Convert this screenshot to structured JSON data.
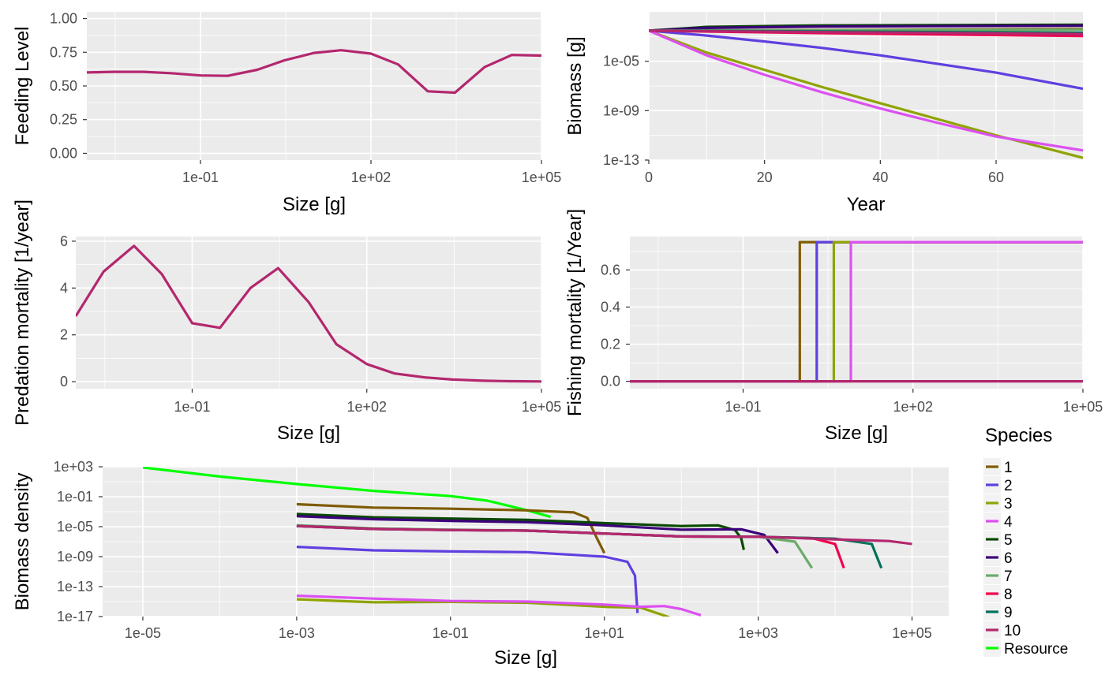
{
  "species_colors": {
    "1": "#7F5B00",
    "2": "#5F3FE0",
    "3": "#8FA300",
    "4": "#DC50F0",
    "5": "#0A4A00",
    "6": "#3B007A",
    "7": "#6AAA6A",
    "8": "#F0004C",
    "9": "#00715A",
    "10": "#B3276E",
    "Resource": "#00FF00"
  },
  "legend": {
    "title": "Species",
    "entries": [
      "1",
      "2",
      "3",
      "4",
      "5",
      "6",
      "7",
      "8",
      "9",
      "10",
      "Resource"
    ]
  },
  "chart_data": [
    {
      "type": "line",
      "xlabel": "Size [g]",
      "ylabel": "Feeding Level",
      "x_scale": "log10",
      "xlim": [
        0.001,
        100000
      ],
      "ylim": [
        -0.05,
        1.05
      ],
      "x_ticks": [
        0.1,
        100,
        100000
      ],
      "x_tick_labels": [
        "1e-01",
        "1e+02",
        "1e+05"
      ],
      "y_ticks": [
        0,
        0.25,
        0.5,
        0.75,
        1.0
      ],
      "y_tick_labels": [
        "0.00",
        "0.25",
        "0.50",
        "0.75",
        "1.00"
      ],
      "series": [
        {
          "name": "10",
          "x": [
            0.001,
            0.003,
            0.01,
            0.03,
            0.1,
            0.3,
            1,
            3,
            10,
            30,
            100,
            300,
            1000,
            3000,
            10000,
            30000,
            100000
          ],
          "y": [
            0.6,
            0.605,
            0.605,
            0.595,
            0.578,
            0.575,
            0.62,
            0.69,
            0.745,
            0.765,
            0.74,
            0.66,
            0.46,
            0.45,
            0.64,
            0.73,
            0.725
          ]
        }
      ]
    },
    {
      "type": "line",
      "xlabel": "Year",
      "ylabel": "Biomass [g]",
      "y_scale": "log10",
      "xlim": [
        0,
        75
      ],
      "ylim": [
        1e-13,
        0.1
      ],
      "x_ticks": [
        0,
        20,
        40,
        60
      ],
      "x_tick_labels": [
        "0",
        "20",
        "40",
        "60"
      ],
      "y_ticks": [
        1e-13,
        1e-09,
        1e-05
      ],
      "y_tick_labels": [
        "1e-13",
        "1e-09",
        "1e-05"
      ],
      "series": [
        {
          "name": "1",
          "x": [
            0,
            75
          ],
          "y": [
            0.003,
            0.004
          ]
        },
        {
          "name": "2",
          "x": [
            0,
            10,
            20,
            30,
            40,
            50,
            60,
            75
          ],
          "y": [
            0.003,
            0.0012,
            0.0004,
            0.00012,
            3e-05,
            6e-06,
            1.2e-06,
            6e-08
          ]
        },
        {
          "name": "3",
          "x": [
            0,
            10,
            20,
            30,
            40,
            50,
            60,
            75
          ],
          "y": [
            0.003,
            5e-05,
            2e-06,
            8e-08,
            4e-09,
            2e-10,
            1e-11,
            1.5e-13
          ]
        },
        {
          "name": "4",
          "x": [
            0,
            10,
            20,
            30,
            40,
            50,
            60,
            75
          ],
          "y": [
            0.003,
            3e-05,
            8e-07,
            3e-08,
            1.5e-09,
            1e-10,
            8e-12,
            6e-13
          ]
        },
        {
          "name": "5",
          "x": [
            0,
            10,
            30,
            75
          ],
          "y": [
            0.003,
            0.006,
            0.008,
            0.009
          ]
        },
        {
          "name": "6",
          "x": [
            0,
            10,
            30,
            75
          ],
          "y": [
            0.003,
            0.005,
            0.0065,
            0.0075
          ]
        },
        {
          "name": "7",
          "x": [
            0,
            75
          ],
          "y": [
            0.003,
            0.0035
          ]
        },
        {
          "name": "8",
          "x": [
            0,
            30,
            75
          ],
          "y": [
            0.003,
            0.0019,
            0.0011
          ]
        },
        {
          "name": "9",
          "x": [
            0,
            30,
            75
          ],
          "y": [
            0.003,
            0.0026,
            0.002
          ]
        },
        {
          "name": "10",
          "x": [
            0,
            30,
            75
          ],
          "y": [
            0.003,
            0.0023,
            0.0016
          ]
        }
      ]
    },
    {
      "type": "line",
      "xlabel": "Size [g]",
      "ylabel": "Predation mortality [1/year]",
      "x_scale": "log10",
      "xlim": [
        0.001,
        100000
      ],
      "ylim": [
        -0.3,
        6.2
      ],
      "x_ticks": [
        0.1,
        100,
        100000
      ],
      "x_tick_labels": [
        "1e-01",
        "1e+02",
        "1e+05"
      ],
      "y_ticks": [
        0,
        2,
        4,
        6
      ],
      "y_tick_labels": [
        "0",
        "2",
        "4",
        "6"
      ],
      "series": [
        {
          "name": "10",
          "x": [
            0.001,
            0.003,
            0.01,
            0.03,
            0.1,
            0.3,
            1,
            3,
            10,
            30,
            100,
            300,
            1000,
            3000,
            10000,
            30000,
            100000
          ],
          "y": [
            2.8,
            4.7,
            5.8,
            4.6,
            2.5,
            2.3,
            4.0,
            4.85,
            3.4,
            1.6,
            0.75,
            0.35,
            0.18,
            0.09,
            0.04,
            0.02,
            0.01
          ]
        }
      ]
    },
    {
      "type": "line",
      "xlabel": "Size [g]",
      "ylabel": "Fishing mortality [1/Year]",
      "x_scale": "log10",
      "xlim": [
        0.001,
        100000
      ],
      "ylim": [
        -0.04,
        0.78
      ],
      "x_ticks": [
        0.1,
        100,
        100000
      ],
      "x_tick_labels": [
        "1e-01",
        "1e+02",
        "1e+05"
      ],
      "y_ticks": [
        0,
        0.2,
        0.4,
        0.6
      ],
      "y_tick_labels": [
        "0.0",
        "0.2",
        "0.4",
        "0.6"
      ],
      "series": [
        {
          "name": "1",
          "x": [
            0.001,
            1.0,
            1.0,
            100000
          ],
          "y": [
            0,
            0,
            0.75,
            0.75
          ]
        },
        {
          "name": "2",
          "x": [
            0.001,
            2.0,
            2.0,
            100000
          ],
          "y": [
            0,
            0,
            0.75,
            0.75
          ]
        },
        {
          "name": "3",
          "x": [
            0.001,
            4.0,
            4.0,
            100000
          ],
          "y": [
            0,
            0,
            0.75,
            0.75
          ]
        },
        {
          "name": "4",
          "x": [
            0.001,
            8.0,
            8.0,
            100000
          ],
          "y": [
            0,
            0,
            0.75,
            0.75
          ]
        },
        {
          "name": "10",
          "x": [
            0.001,
            100000
          ],
          "y": [
            0,
            0
          ]
        }
      ]
    },
    {
      "type": "line",
      "xlabel": "Size [g]",
      "ylabel": "Biomass density",
      "x_scale": "log10",
      "y_scale": "log10",
      "xlim": [
        3e-06,
        300000
      ],
      "ylim": [
        1e-17,
        1000.0
      ],
      "x_ticks": [
        1e-05,
        0.001,
        0.1,
        10.0,
        1000.0,
        100000.0
      ],
      "x_tick_labels": [
        "1e-05",
        "1e-03",
        "1e-01",
        "1e+01",
        "1e+03",
        "1e+05"
      ],
      "y_ticks": [
        1000.0,
        0.1,
        1e-05,
        1e-09,
        1e-13,
        1e-17
      ],
      "y_tick_labels": [
        "1e+03",
        "1e-01",
        "1e-05",
        "1e-09",
        "1e-13",
        "1e-17"
      ],
      "series": [
        {
          "name": "Resource",
          "x": [
            1e-05,
            0.0001,
            0.001,
            0.01,
            0.1,
            0.3,
            1,
            2
          ],
          "y": [
            800,
            50,
            5,
            0.6,
            0.12,
            0.03,
            0.0015,
            0.0002
          ]
        },
        {
          "name": "1",
          "x": [
            0.001,
            0.01,
            0.1,
            1,
            4,
            6,
            8,
            10
          ],
          "y": [
            0.01,
            0.0035,
            0.0025,
            0.0015,
            0.0008,
            0.00015,
            3e-07,
            3e-09
          ]
        },
        {
          "name": "2",
          "x": [
            0.001,
            0.01,
            0.1,
            1,
            5,
            10,
            20,
            25,
            27
          ],
          "y": [
            2e-08,
            7e-09,
            5e-09,
            4e-09,
            1.5e-09,
            1e-09,
            2e-10,
            3e-12,
            3e-17
          ]
        },
        {
          "name": "3",
          "x": [
            0.001,
            0.01,
            0.1,
            1,
            10,
            30,
            70
          ],
          "y": [
            2e-15,
            8e-16,
            9e-16,
            7e-16,
            2e-16,
            1.5e-16,
            8e-18
          ]
        },
        {
          "name": "4",
          "x": [
            0.001,
            0.01,
            0.1,
            1,
            10,
            30,
            60,
            100,
            180
          ],
          "y": [
            6e-15,
            2.5e-15,
            1.2e-15,
            1e-15,
            4e-16,
            2e-16,
            2.5e-16,
            1e-16,
            1.5e-17
          ]
        },
        {
          "name": "5",
          "x": [
            0.001,
            0.01,
            0.1,
            1,
            10,
            100,
            300,
            500,
            600,
            650
          ],
          "y": [
            0.0005,
            0.00018,
            0.00012,
            8e-05,
            3e-05,
            1.2e-05,
            1.5e-05,
            3.5e-06,
            3e-07,
            8e-09
          ]
        },
        {
          "name": "6",
          "x": [
            0.001,
            0.01,
            0.1,
            1,
            10,
            100,
            600,
            1200,
            1800
          ],
          "y": [
            0.00025,
            0.0001,
            6e-05,
            4e-05,
            1.5e-05,
            4e-06,
            4.5e-06,
            8e-07,
            3e-09
          ]
        },
        {
          "name": "7",
          "x": [
            0.001,
            0.01,
            0.1,
            1,
            10,
            100,
            1000,
            3000,
            5000
          ],
          "y": [
            1.5e-05,
            6e-06,
            4e-06,
            3e-06,
            1.2e-06,
            5e-07,
            4.5e-07,
            1e-07,
            3e-11
          ]
        },
        {
          "name": "8",
          "x": [
            0.001,
            0.01,
            0.1,
            1,
            10,
            100,
            1000,
            5000,
            10000,
            13000
          ],
          "y": [
            1.2e-05,
            5e-06,
            3.5e-06,
            3e-06,
            1.2e-06,
            5e-07,
            4.5e-07,
            3e-07,
            5e-08,
            3e-11
          ]
        },
        {
          "name": "9",
          "x": [
            0.001,
            0.01,
            0.1,
            1,
            10,
            100,
            1000,
            10000,
            30000,
            40000
          ],
          "y": [
            1.2e-05,
            5e-06,
            3.5e-06,
            3e-06,
            1.2e-06,
            5e-07,
            4.5e-07,
            2.5e-07,
            5e-08,
            3e-11
          ]
        },
        {
          "name": "10",
          "x": [
            0.001,
            0.01,
            0.1,
            1,
            10,
            100,
            1000,
            10000,
            50000,
            100000
          ],
          "y": [
            1.2e-05,
            5e-06,
            3.5e-06,
            3e-06,
            1.2e-06,
            5e-07,
            4.5e-07,
            2e-07,
            1.2e-07,
            5e-08
          ]
        }
      ]
    }
  ]
}
